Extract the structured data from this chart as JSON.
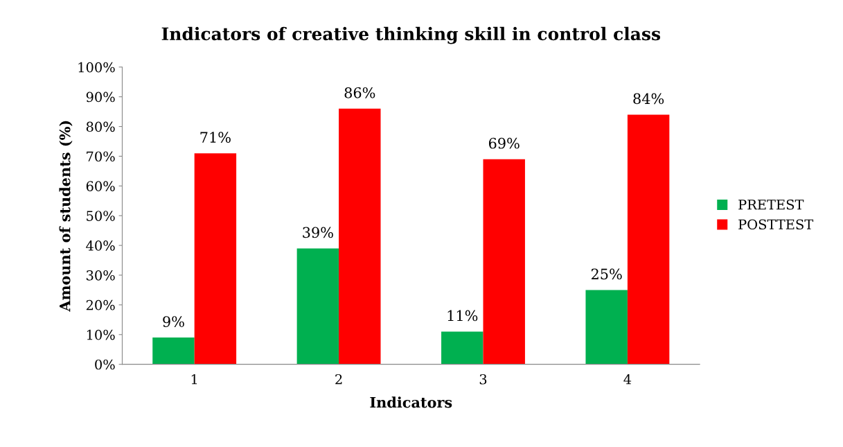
{
  "chart_data": {
    "type": "bar",
    "title": "Indicators of creative thinking skill in control class",
    "xlabel": "Indicators",
    "ylabel": "Amount of students (%)",
    "categories": [
      "1",
      "2",
      "3",
      "4"
    ],
    "series": [
      {
        "name": "PRETEST",
        "color": "#00b050",
        "values": [
          9,
          39,
          11,
          25
        ],
        "value_labels": [
          "9%",
          "39%",
          "11%",
          "25%"
        ]
      },
      {
        "name": "POSTTEST",
        "color": "#ff0000",
        "values": [
          71,
          86,
          69,
          84
        ],
        "value_labels": [
          "71%",
          "86%",
          "69%",
          "84%"
        ]
      }
    ],
    "ylim": [
      0,
      100
    ],
    "yticks": [
      {
        "value": 0,
        "label": "0%"
      },
      {
        "value": 10,
        "label": "10%"
      },
      {
        "value": 20,
        "label": "20%"
      },
      {
        "value": 30,
        "label": "30%"
      },
      {
        "value": 40,
        "label": "40%"
      },
      {
        "value": 50,
        "label": "50%"
      },
      {
        "value": 60,
        "label": "60%"
      },
      {
        "value": 70,
        "label": "70%"
      },
      {
        "value": 80,
        "label": "80%"
      },
      {
        "value": 90,
        "label": "90%"
      },
      {
        "value": 100,
        "label": "100%"
      }
    ],
    "grid": false,
    "legend": "right"
  }
}
